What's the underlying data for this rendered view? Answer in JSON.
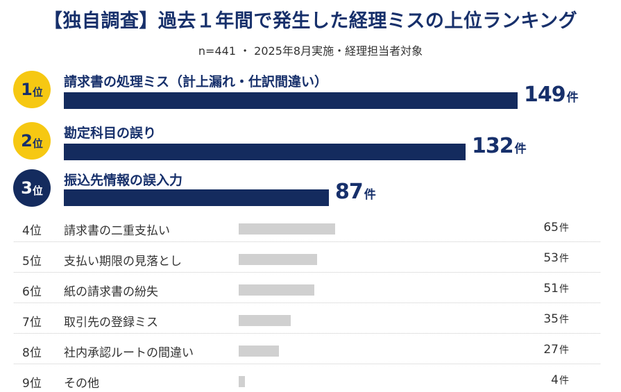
{
  "chart_data": {
    "type": "bar",
    "orientation": "horizontal",
    "title": "【独自調査】過去１年間で発生した経理ミスの上位ランキング",
    "subtitle": "n=441 ・ 2025年8月実施・経理担当者対象",
    "unit": "件",
    "rank_suffix": "位",
    "categories": [
      "請求書の処理ミス（計上漏れ・仕訳間違い）",
      "勘定科目の誤り",
      "振込先情報の誤入力",
      "請求書の二重支払い",
      "支払い期限の見落とし",
      "紙の請求書の紛失",
      "取引先の登録ミス",
      "社内承認ルートの間違い",
      "その他"
    ],
    "ranks": [
      1,
      2,
      3,
      4,
      5,
      6,
      7,
      8,
      9
    ],
    "values": [
      149,
      132,
      87,
      65,
      53,
      51,
      35,
      27,
      4
    ],
    "xlim": [
      0,
      149
    ],
    "colors": {
      "rank1": "#f6c812",
      "rank2": "#f6c812",
      "rank3": "#142b5e",
      "top_bar": "#142b5e",
      "rest_bar": "#d0d0d0"
    },
    "grid": false,
    "legend": "none"
  }
}
